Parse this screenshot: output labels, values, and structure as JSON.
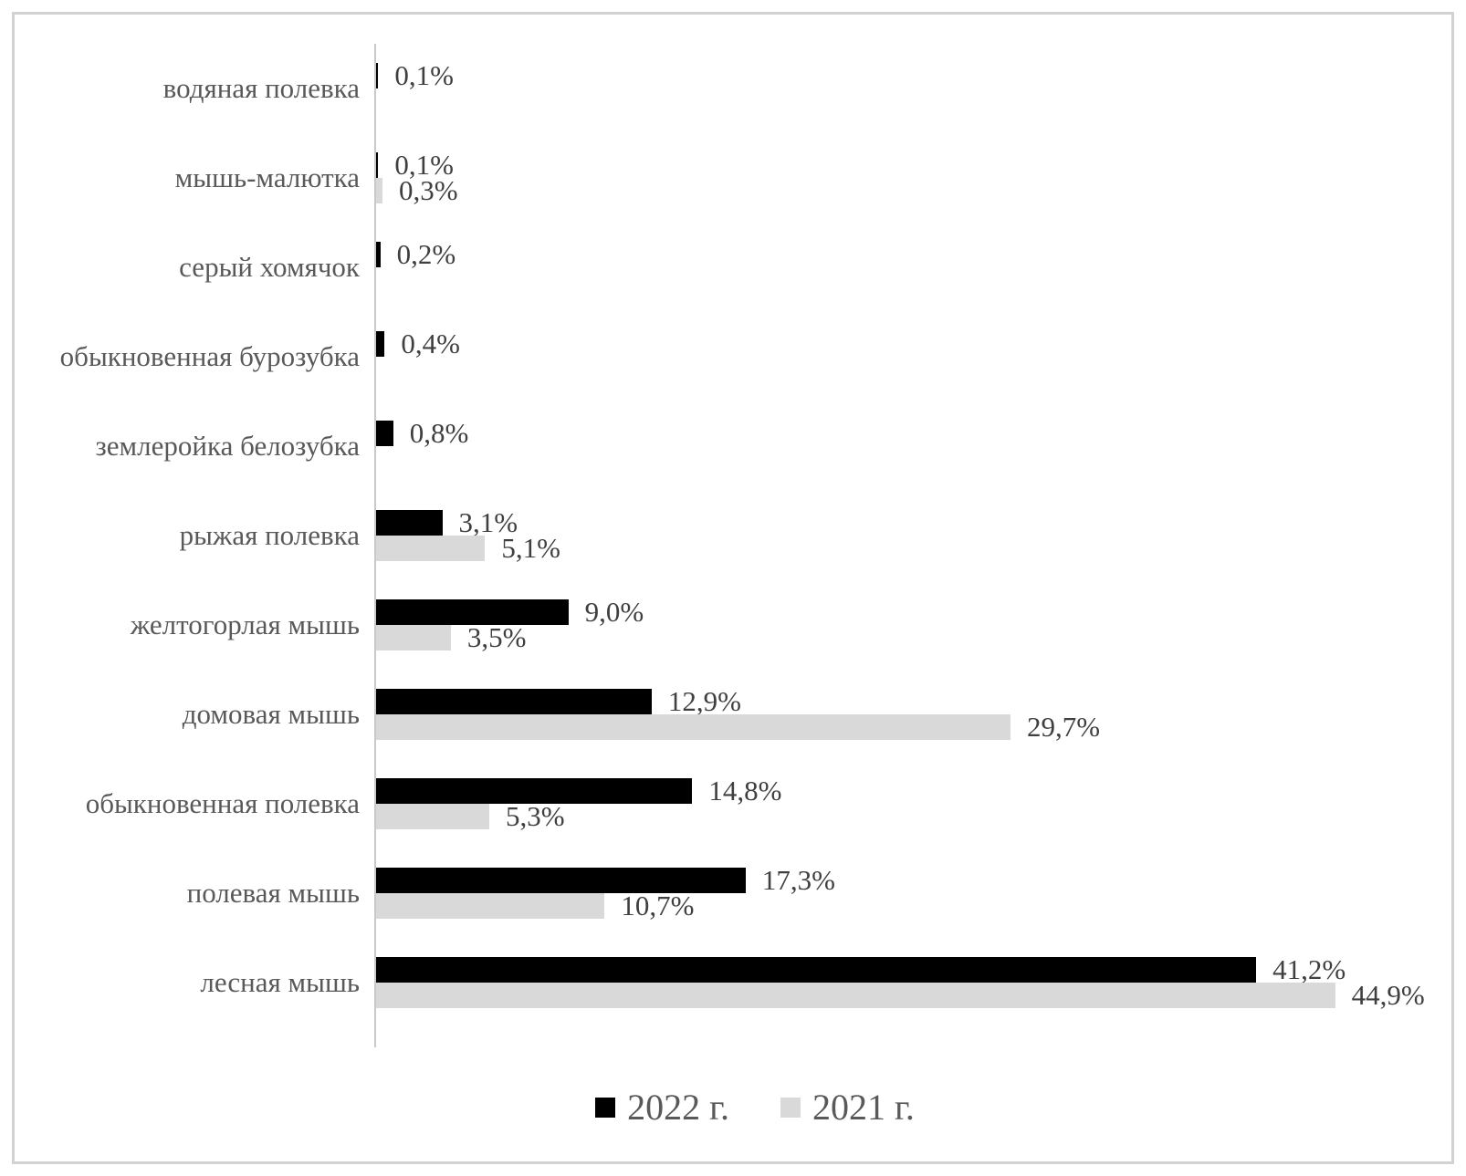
{
  "chart_data": {
    "type": "bar",
    "orientation": "horizontal",
    "title": "",
    "xlabel": "",
    "ylabel": "",
    "xlim": [
      0,
      50
    ],
    "grid": false,
    "legend_position": "bottom",
    "value_label_format": "percent, comma decimal separator",
    "categories": [
      "водяная полевка",
      "мышь-малютка",
      "серый хомячок",
      "обыкновенная бурозубка",
      "землеройка белозубка",
      "рыжая полевка",
      "желтогорлая мышь",
      "домовая мышь",
      "обыкновенная полевка",
      "полевая мышь",
      "лесная мышь"
    ],
    "series": [
      {
        "name": "2022 г.",
        "color": "#000000",
        "values": [
          0.1,
          0.1,
          0.2,
          0.4,
          0.8,
          3.1,
          9.0,
          12.9,
          14.8,
          17.3,
          41.2
        ],
        "labels": [
          "0,1%",
          "0,1%",
          "0,2%",
          "0,4%",
          "0,8%",
          "3,1%",
          "9,0%",
          "12,9%",
          "14,8%",
          "17,3%",
          "41,2%"
        ]
      },
      {
        "name": "2021 г.",
        "color": "#d9d9d9",
        "values": [
          null,
          0.3,
          null,
          null,
          null,
          5.1,
          3.5,
          29.7,
          5.3,
          10.7,
          44.9
        ],
        "labels": [
          null,
          "0,3%",
          null,
          null,
          null,
          "5,1%",
          "3,5%",
          "29,7%",
          "5,3%",
          "10,7%",
          "44,9%"
        ]
      }
    ]
  },
  "legend": {
    "items": [
      {
        "label": "2022 г.",
        "color": "#000000"
      },
      {
        "label": "2021 г.",
        "color": "#d9d9d9"
      }
    ]
  },
  "style": {
    "axis_line_color": "#c9c9c9",
    "frame_border_color": "#d2d2d2",
    "category_label_color": "#595959",
    "value_label_color": "#3f3f3f"
  }
}
